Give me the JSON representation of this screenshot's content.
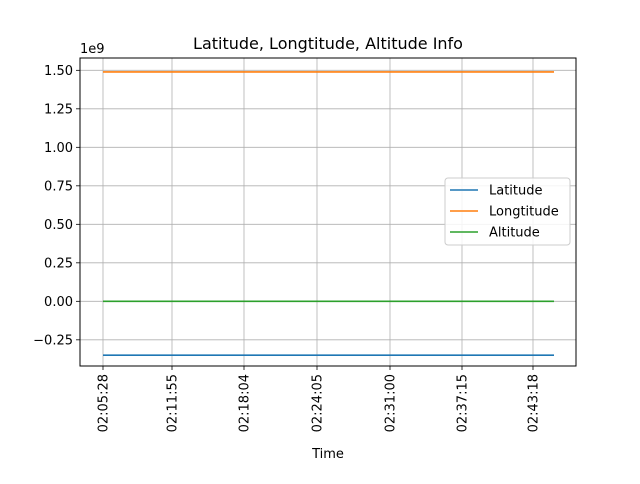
{
  "chart_data": {
    "type": "line",
    "title": "Latitude, Longtitude, Altitude Info",
    "xlabel": "Time",
    "ylabel": "",
    "y_offset_label": "1e9",
    "x_tick_labels": [
      "02:05:28",
      "02:11:55",
      "02:18:04",
      "02:24:05",
      "02:31:00",
      "02:37:15",
      "02:43:18"
    ],
    "x_range": [
      "02:05:28",
      "02:47:00"
    ],
    "y_ticks": [
      -0.25,
      0.0,
      0.25,
      0.5,
      0.75,
      1.0,
      1.25,
      1.5
    ],
    "y_tick_labels": [
      "−0.25",
      "0.00",
      "0.25",
      "0.50",
      "0.75",
      "1.00",
      "1.25",
      "1.50"
    ],
    "ylim": [
      -0.42,
      1.58
    ],
    "grid": true,
    "legend_position": "center-right",
    "series": [
      {
        "name": "Latitude",
        "color": "#1f77b4",
        "x": [
          "02:05:28",
          "02:47:00"
        ],
        "values": [
          -0.35,
          -0.35
        ]
      },
      {
        "name": "Longtitude",
        "color": "#ff7f0e",
        "x": [
          "02:05:28",
          "02:47:00"
        ],
        "values": [
          1.49,
          1.49
        ]
      },
      {
        "name": "Altitude",
        "color": "#2ca02c",
        "x": [
          "02:05:28",
          "02:47:00"
        ],
        "values": [
          0.0,
          0.0
        ]
      }
    ]
  }
}
